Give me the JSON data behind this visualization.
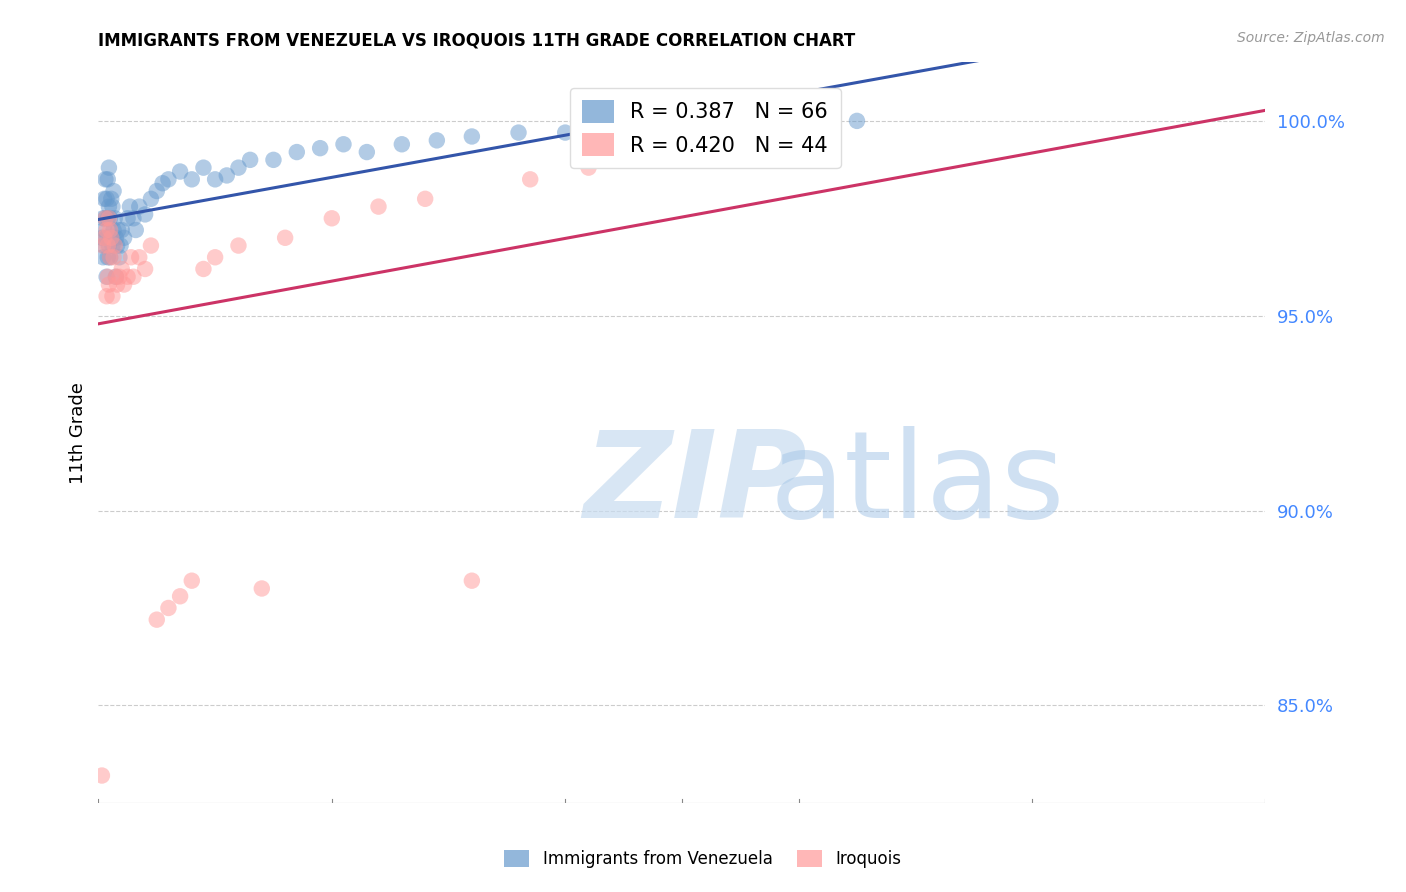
{
  "title": "IMMIGRANTS FROM VENEZUELA VS IROQUOIS 11TH GRADE CORRELATION CHART",
  "source": "Source: ZipAtlas.com",
  "ylabel": "11th Grade",
  "ytick_labels": [
    "100.0%",
    "95.0%",
    "90.0%",
    "85.0%"
  ],
  "ytick_values": [
    1.0,
    0.95,
    0.9,
    0.85
  ],
  "xlim": [
    0.0,
    1.0
  ],
  "ylim": [
    0.825,
    1.015
  ],
  "legend_blue_r": "R = 0.387",
  "legend_blue_n": "N = 66",
  "legend_pink_r": "R = 0.420",
  "legend_pink_n": "N = 44",
  "blue_color": "#6699CC",
  "pink_color": "#FF9999",
  "blue_line_color": "#3355AA",
  "pink_line_color": "#CC3366",
  "background_color": "#FFFFFF",
  "blue_x": [
    0.003,
    0.004,
    0.004,
    0.005,
    0.005,
    0.005,
    0.006,
    0.006,
    0.007,
    0.007,
    0.007,
    0.008,
    0.008,
    0.008,
    0.009,
    0.009,
    0.009,
    0.01,
    0.01,
    0.011,
    0.011,
    0.012,
    0.012,
    0.013,
    0.013,
    0.014,
    0.015,
    0.015,
    0.016,
    0.017,
    0.018,
    0.019,
    0.02,
    0.022,
    0.025,
    0.027,
    0.03,
    0.032,
    0.035,
    0.04,
    0.045,
    0.05,
    0.055,
    0.06,
    0.07,
    0.08,
    0.09,
    0.1,
    0.11,
    0.12,
    0.13,
    0.15,
    0.17,
    0.19,
    0.21,
    0.23,
    0.26,
    0.29,
    0.32,
    0.36,
    0.4,
    0.45,
    0.5,
    0.55,
    0.6,
    0.65
  ],
  "blue_y": [
    0.97,
    0.965,
    0.975,
    0.968,
    0.98,
    0.972,
    0.975,
    0.985,
    0.96,
    0.97,
    0.98,
    0.965,
    0.975,
    0.985,
    0.968,
    0.978,
    0.988,
    0.965,
    0.975,
    0.97,
    0.98,
    0.968,
    0.978,
    0.972,
    0.982,
    0.975,
    0.96,
    0.97,
    0.968,
    0.972,
    0.965,
    0.968,
    0.972,
    0.97,
    0.975,
    0.978,
    0.975,
    0.972,
    0.978,
    0.976,
    0.98,
    0.982,
    0.984,
    0.985,
    0.987,
    0.985,
    0.988,
    0.985,
    0.986,
    0.988,
    0.99,
    0.99,
    0.992,
    0.993,
    0.994,
    0.992,
    0.994,
    0.995,
    0.996,
    0.997,
    0.997,
    0.998,
    0.998,
    0.999,
    0.999,
    1.0
  ],
  "pink_x": [
    0.003,
    0.004,
    0.005,
    0.006,
    0.007,
    0.007,
    0.008,
    0.008,
    0.009,
    0.009,
    0.01,
    0.01,
    0.011,
    0.012,
    0.013,
    0.014,
    0.015,
    0.016,
    0.018,
    0.02,
    0.022,
    0.025,
    0.028,
    0.03,
    0.035,
    0.04,
    0.045,
    0.05,
    0.06,
    0.07,
    0.08,
    0.09,
    0.1,
    0.12,
    0.14,
    0.16,
    0.2,
    0.24,
    0.28,
    0.32,
    0.37,
    0.42,
    0.48,
    0.54
  ],
  "pink_y": [
    0.832,
    0.968,
    0.97,
    0.975,
    0.955,
    0.972,
    0.96,
    0.968,
    0.958,
    0.975,
    0.965,
    0.972,
    0.97,
    0.955,
    0.965,
    0.968,
    0.96,
    0.958,
    0.96,
    0.962,
    0.958,
    0.96,
    0.965,
    0.96,
    0.965,
    0.962,
    0.968,
    0.872,
    0.875,
    0.878,
    0.882,
    0.962,
    0.965,
    0.968,
    0.88,
    0.97,
    0.975,
    0.978,
    0.98,
    0.882,
    0.985,
    0.988,
    0.99,
    1.0
  ]
}
